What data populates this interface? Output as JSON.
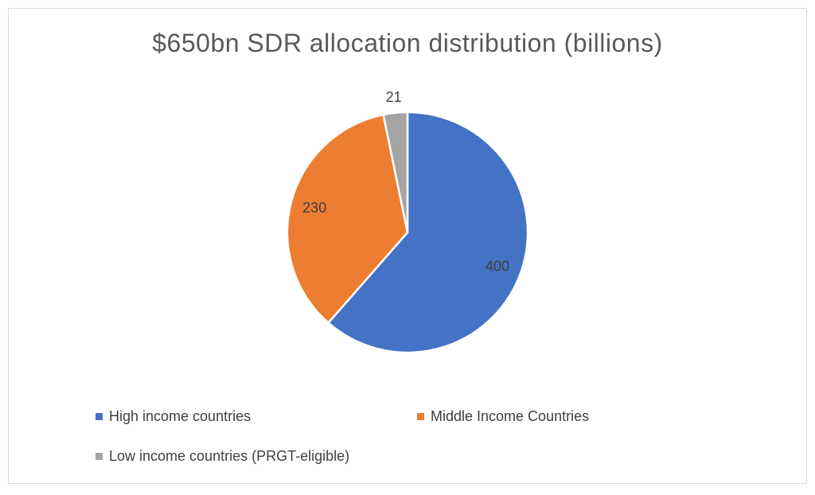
{
  "colors": {
    "high": "#4472C4",
    "middle": "#ED7D31",
    "low": "#A5A5A5",
    "border": "#D9D9D9",
    "text": "#595959"
  },
  "chart_data": {
    "type": "pie",
    "title": "$650bn SDR allocation distribution (billions)",
    "categories": [
      "High income countries",
      "Middle Income Countries",
      "Low income countries (PRGT-eligible)"
    ],
    "values": [
      400,
      230,
      21
    ],
    "data_labels": [
      "400",
      "230",
      "21"
    ],
    "legend_position": "bottom",
    "start_angle": "12 o'clock, clockwise"
  }
}
